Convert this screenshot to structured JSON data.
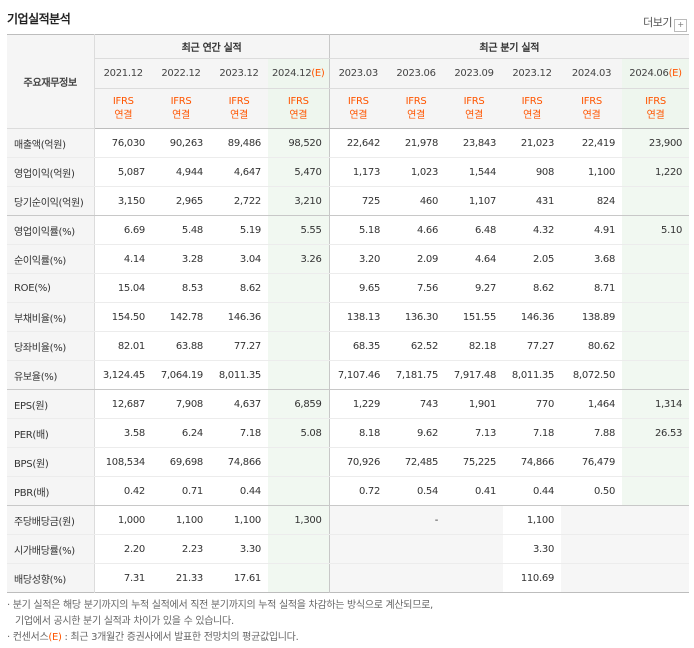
{
  "title": "기업실적분석",
  "more_label": "더보기",
  "more_arrow": "+",
  "header": {
    "label": "주요재무정보",
    "annual_group": "최근 연간 실적",
    "quarter_group": "최근 분기 실적",
    "annual_periods": [
      "2021.12",
      "2022.12",
      "2023.12",
      "2024.12"
    ],
    "annual_est_marker": "(E)",
    "quarter_periods": [
      "2023.03",
      "2023.06",
      "2023.09",
      "2023.12",
      "2024.03",
      "2024.06"
    ],
    "quarter_est_marker": "(E)",
    "ifrs_top": "IFRS",
    "ifrs_bottom": "연결"
  },
  "rows": [
    {
      "label": "매출액(억원)",
      "values": [
        "76,030",
        "90,263",
        "89,486",
        "98,520",
        "22,642",
        "21,978",
        "23,843",
        "21,023",
        "22,419",
        "23,900"
      ]
    },
    {
      "label": "영업이익(억원)",
      "values": [
        "5,087",
        "4,944",
        "4,647",
        "5,470",
        "1,173",
        "1,023",
        "1,544",
        "908",
        "1,100",
        "1,220"
      ]
    },
    {
      "label": "당기순이익(억원)",
      "values": [
        "3,150",
        "2,965",
        "2,722",
        "3,210",
        "725",
        "460",
        "1,107",
        "431",
        "824",
        ""
      ]
    },
    {
      "label": "영업이익률(%)",
      "values": [
        "6.69",
        "5.48",
        "5.19",
        "5.55",
        "5.18",
        "4.66",
        "6.48",
        "4.32",
        "4.91",
        "5.10"
      ]
    },
    {
      "label": "순이익률(%)",
      "values": [
        "4.14",
        "3.28",
        "3.04",
        "3.26",
        "3.20",
        "2.09",
        "4.64",
        "2.05",
        "3.68",
        ""
      ]
    },
    {
      "label": "ROE(%)",
      "values": [
        "15.04",
        "8.53",
        "8.62",
        "",
        "9.65",
        "7.56",
        "9.27",
        "8.62",
        "8.71",
        ""
      ]
    },
    {
      "label": "부채비율(%)",
      "values": [
        "154.50",
        "142.78",
        "146.36",
        "",
        "138.13",
        "136.30",
        "151.55",
        "146.36",
        "138.89",
        ""
      ]
    },
    {
      "label": "당좌비율(%)",
      "values": [
        "82.01",
        "63.88",
        "77.27",
        "",
        "68.35",
        "62.52",
        "82.18",
        "77.27",
        "80.62",
        ""
      ]
    },
    {
      "label": "유보율(%)",
      "values": [
        "3,124.45",
        "7,064.19",
        "8,011.35",
        "",
        "7,107.46",
        "7,181.75",
        "7,917.48",
        "8,011.35",
        "8,072.50",
        ""
      ]
    },
    {
      "label": "EPS(원)",
      "values": [
        "12,687",
        "7,908",
        "4,637",
        "6,859",
        "1,229",
        "743",
        "1,901",
        "770",
        "1,464",
        "1,314"
      ]
    },
    {
      "label": "PER(배)",
      "values": [
        "3.58",
        "6.24",
        "7.18",
        "5.08",
        "8.18",
        "9.62",
        "7.13",
        "7.18",
        "7.88",
        "26.53"
      ]
    },
    {
      "label": "BPS(원)",
      "values": [
        "108,534",
        "69,698",
        "74,866",
        "",
        "70,926",
        "72,485",
        "75,225",
        "74,866",
        "76,479",
        ""
      ]
    },
    {
      "label": "PBR(배)",
      "values": [
        "0.42",
        "0.71",
        "0.44",
        "",
        "0.72",
        "0.54",
        "0.41",
        "0.44",
        "0.50",
        ""
      ]
    },
    {
      "label": "주당배당금(원)",
      "values": [
        "1,000",
        "1,100",
        "1,100",
        "1,300",
        "",
        "-",
        "",
        "1,100",
        "",
        ""
      ]
    },
    {
      "label": "시가배당률(%)",
      "values": [
        "2.20",
        "2.23",
        "3.30",
        "",
        "",
        "",
        "",
        "3.30",
        "",
        ""
      ]
    },
    {
      "label": "배당성향(%)",
      "values": [
        "7.31",
        "21.33",
        "17.61",
        "",
        "",
        "",
        "",
        "110.69",
        "",
        ""
      ]
    }
  ],
  "notes": {
    "line1": "· 분기 실적은 해당 분기까지의 누적 실적에서 직전 분기까지의 누적 실적을 차감하는 방식으로 계산되므로,",
    "line2": "기업에서 공시한 분기 실적과 차이가 있을 수 있습니다.",
    "line3_pre": "· 컨센서스",
    "line3_e": "(E)",
    "line3_post": " : 최근 3개월간 증권사에서 발표한 전망치의 평균값입니다."
  },
  "colors": {
    "accent": "#ff5500",
    "estimate_bg": "#f1f8f1"
  }
}
